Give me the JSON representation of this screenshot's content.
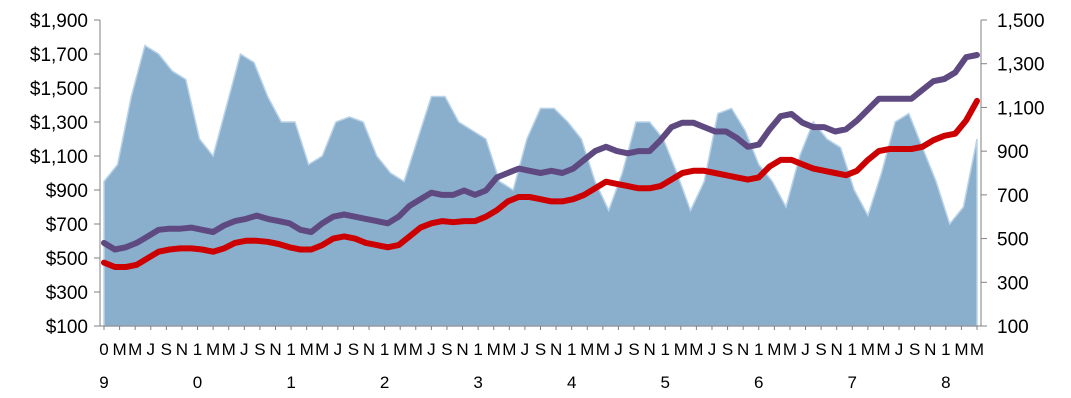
{
  "chart_data": {
    "type": "area+line",
    "title": "",
    "xlabel": "",
    "ylabel_left": "",
    "ylabel_right": "",
    "grid": false,
    "legend": "none",
    "y_left": {
      "min": 100,
      "max": 1900,
      "ticks": [
        "$100",
        "$300",
        "$500",
        "$700",
        "$900",
        "$1,100",
        "$1,300",
        "$1,500",
        "$1,700",
        "$1,900"
      ]
    },
    "y_right": {
      "min": 100,
      "max": 1500,
      "ticks": [
        "100",
        "300",
        "500",
        "700",
        "900",
        "1,100",
        "1,300",
        "1,500"
      ]
    },
    "x_tick_labels": [
      "0",
      "M",
      "M",
      "J",
      "S",
      "N",
      "1",
      "M",
      "M",
      "J",
      "S",
      "N",
      "1",
      "M",
      "M",
      "J",
      "S",
      "N",
      "1",
      "M",
      "M",
      "J",
      "S",
      "N",
      "1",
      "M",
      "M",
      "J",
      "S",
      "N",
      "1",
      "M",
      "M",
      "J",
      "S",
      "N",
      "1",
      "M",
      "M",
      "J",
      "S",
      "N",
      "1",
      "M",
      "M",
      "J",
      "S",
      "N",
      "1",
      "M",
      "M",
      "J",
      "S",
      "N",
      "1",
      "M",
      "M"
    ],
    "x_year_labels": [
      "9",
      "0",
      "1",
      "2",
      "3",
      "4",
      "5",
      "6",
      "7",
      "8"
    ],
    "colors": {
      "area": "#8aafcc",
      "area_edge": "#b9d3ea",
      "series_purple": "#5e4a80",
      "series_red": "#cc0000",
      "axis": "#808080"
    },
    "series": [
      {
        "axis": "left",
        "kind": "area",
        "color": "#8aafcc",
        "values": [
          950,
          1050,
          1450,
          1750,
          1700,
          1600,
          1550,
          1200,
          1100,
          1400,
          1700,
          1650,
          1450,
          1300,
          1300,
          1050,
          1100,
          1300,
          1330,
          1300,
          1100,
          1000,
          950,
          1200,
          1450,
          1450,
          1300,
          1250,
          1200,
          950,
          900,
          1200,
          1380,
          1380,
          1300,
          1200,
          950,
          780,
          1000,
          1300,
          1300,
          1200,
          1000,
          780,
          950,
          1350,
          1380,
          1250,
          1050,
          950,
          800,
          1100,
          1300,
          1200,
          1150,
          900,
          750,
          1000,
          1300,
          1350,
          1150,
          950,
          700,
          800,
          1200
        ]
      },
      {
        "axis": "right",
        "kind": "line",
        "color": "#5e4a80",
        "values": [
          480,
          450,
          460,
          480,
          510,
          540,
          545,
          545,
          550,
          540,
          530,
          560,
          580,
          590,
          605,
          590,
          580,
          570,
          540,
          530,
          570,
          600,
          610,
          600,
          590,
          580,
          570,
          600,
          650,
          680,
          710,
          700,
          700,
          720,
          700,
          720,
          780,
          800,
          820,
          810,
          800,
          810,
          800,
          820,
          860,
          900,
          920,
          900,
          890,
          900,
          900,
          950,
          1010,
          1030,
          1030,
          1010,
          990,
          990,
          960,
          920,
          930,
          1000,
          1060,
          1070,
          1030,
          1010,
          1010,
          990,
          1000,
          1040,
          1090,
          1140,
          1140,
          1140,
          1140,
          1180,
          1220,
          1230,
          1260,
          1330,
          1340
        ]
      },
      {
        "axis": "right",
        "kind": "line",
        "color": "#cc0000",
        "values": [
          390,
          370,
          370,
          380,
          410,
          440,
          450,
          455,
          455,
          450,
          440,
          455,
          480,
          490,
          490,
          485,
          475,
          460,
          450,
          450,
          470,
          500,
          510,
          500,
          480,
          470,
          460,
          470,
          510,
          550,
          570,
          580,
          575,
          580,
          580,
          600,
          630,
          670,
          690,
          690,
          680,
          670,
          670,
          680,
          700,
          730,
          760,
          750,
          740,
          730,
          730,
          740,
          770,
          800,
          810,
          810,
          800,
          790,
          780,
          770,
          780,
          830,
          860,
          860,
          840,
          820,
          810,
          800,
          790,
          810,
          860,
          900,
          910,
          910,
          910,
          920,
          950,
          970,
          980,
          1040,
          1130
        ]
      }
    ]
  }
}
